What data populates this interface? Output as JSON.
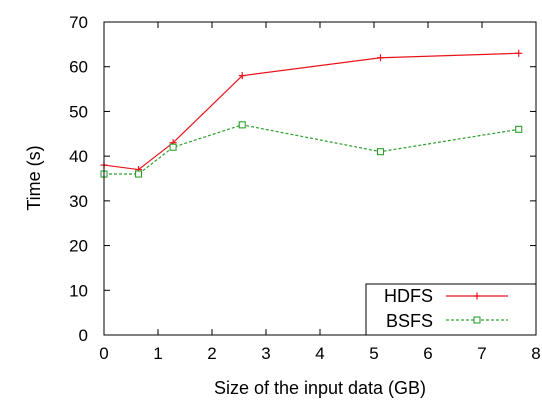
{
  "chart_data": {
    "type": "line",
    "xlabel": "Size of the input data (GB)",
    "ylabel": "Time (s)",
    "xlim": [
      0,
      8
    ],
    "ylim": [
      0,
      70
    ],
    "xticks": [
      "0",
      "1",
      "2",
      "3",
      "4",
      "5",
      "6",
      "7",
      "8"
    ],
    "yticks": [
      "0",
      "10",
      "20",
      "30",
      "40",
      "50",
      "60",
      "70"
    ],
    "grid": false,
    "legend_position": "bottom-right",
    "series": [
      {
        "name": "HDFS",
        "color": "#e8141b",
        "marker": "plus",
        "dash": "solid",
        "x": [
          0,
          0.64,
          1.28,
          2.56,
          5.12,
          7.68
        ],
        "y": [
          38,
          37,
          43,
          58,
          62,
          63
        ]
      },
      {
        "name": "BSFS",
        "color": "#2ca02c",
        "marker": "square",
        "dash": "dashed",
        "x": [
          0,
          0.64,
          1.28,
          2.56,
          5.12,
          7.68
        ],
        "y": [
          36,
          36,
          42,
          47,
          41,
          46
        ]
      }
    ]
  }
}
